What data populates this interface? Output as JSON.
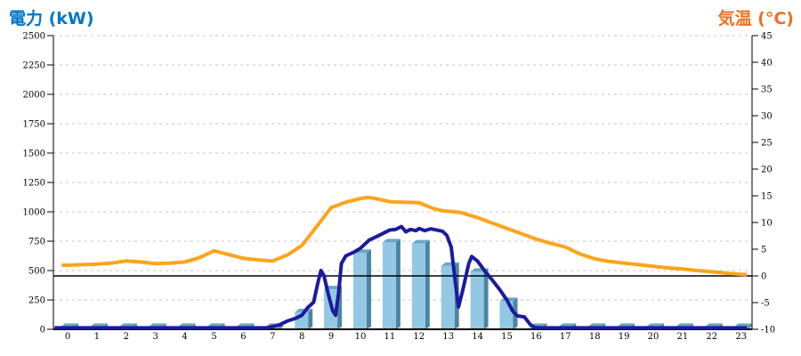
{
  "titles": {
    "left": "電力 (kW)",
    "right": "気温 (°C)"
  },
  "colors": {
    "title_left": "#0077c8",
    "title_right": "#ed7021",
    "bar_front": "#92c8e4",
    "bar_side": "#4a86a2",
    "bar_top": "#68a8c4",
    "power_line": "#1b1b9e",
    "temp_line": "#fca41c",
    "gridline": "#c6c6c6",
    "axis": "#000000"
  },
  "chart_data": {
    "type": "combo-bar-line-dual-axis",
    "title": "",
    "x_tick_labels": [
      "0",
      "1",
      "2",
      "3",
      "4",
      "5",
      "6",
      "7",
      "8",
      "9",
      "10",
      "11",
      "12",
      "13",
      "14",
      "15",
      "16",
      "17",
      "18",
      "19",
      "20",
      "21",
      "22",
      "23"
    ],
    "left_axis": {
      "label": "電力 (kW)",
      "min": 0,
      "max": 2500,
      "tick_step": 250,
      "tick_labels": [
        "0",
        "250",
        "500",
        "750",
        "1000",
        "1250",
        "1500",
        "1750",
        "2000",
        "2250",
        "2500"
      ],
      "grid": "dashed horizontal at each tick"
    },
    "right_axis": {
      "label": "気温 (°C)",
      "min": -10,
      "max": 45,
      "tick_step": 5,
      "tick_labels": [
        "-10",
        "-5",
        "0",
        "5",
        "10",
        "15",
        "20",
        "25",
        "30",
        "35",
        "40",
        "45"
      ],
      "zero_reference_line": true
    },
    "series": [
      {
        "name": "power-bars",
        "type": "bar",
        "axis": "left",
        "values": [
          20,
          20,
          20,
          20,
          20,
          20,
          20,
          20,
          145,
          340,
          650,
          740,
          730,
          540,
          490,
          240,
          20,
          20,
          20,
          20,
          20,
          20,
          20,
          20
        ]
      },
      {
        "name": "power-line",
        "type": "line",
        "axis": "left",
        "points": [
          [
            -0.45,
            12
          ],
          [
            0,
            12
          ],
          [
            1,
            12
          ],
          [
            2,
            12
          ],
          [
            3,
            12
          ],
          [
            4,
            12
          ],
          [
            5,
            12
          ],
          [
            6,
            12
          ],
          [
            6.8,
            12
          ],
          [
            7.2,
            35
          ],
          [
            7.5,
            70
          ],
          [
            7.8,
            95
          ],
          [
            8,
            120
          ],
          [
            8.2,
            185
          ],
          [
            8.4,
            230
          ],
          [
            8.55,
            400
          ],
          [
            8.65,
            500
          ],
          [
            8.75,
            460
          ],
          [
            8.9,
            300
          ],
          [
            9.05,
            160
          ],
          [
            9.15,
            120
          ],
          [
            9.25,
            300
          ],
          [
            9.35,
            560
          ],
          [
            9.5,
            625
          ],
          [
            9.8,
            660
          ],
          [
            10,
            690
          ],
          [
            10.3,
            760
          ],
          [
            10.6,
            795
          ],
          [
            11,
            845
          ],
          [
            11.2,
            850
          ],
          [
            11.4,
            875
          ],
          [
            11.55,
            830
          ],
          [
            11.7,
            850
          ],
          [
            11.9,
            840
          ],
          [
            12,
            858
          ],
          [
            12.2,
            840
          ],
          [
            12.4,
            855
          ],
          [
            12.6,
            845
          ],
          [
            12.8,
            835
          ],
          [
            12.95,
            800
          ],
          [
            13.1,
            700
          ],
          [
            13.25,
            380
          ],
          [
            13.35,
            190
          ],
          [
            13.5,
            340
          ],
          [
            13.7,
            560
          ],
          [
            13.8,
            620
          ],
          [
            14,
            580
          ],
          [
            14.25,
            495
          ],
          [
            14.5,
            420
          ],
          [
            14.75,
            340
          ],
          [
            15,
            250
          ],
          [
            15.2,
            155
          ],
          [
            15.35,
            115
          ],
          [
            15.6,
            105
          ],
          [
            15.8,
            40
          ],
          [
            15.95,
            15
          ],
          [
            16.2,
            12
          ],
          [
            17,
            12
          ],
          [
            18,
            12
          ],
          [
            19,
            12
          ],
          [
            20,
            12
          ],
          [
            21,
            12
          ],
          [
            22,
            12
          ],
          [
            23,
            12
          ],
          [
            23.2,
            12
          ]
        ]
      },
      {
        "name": "temperature-line",
        "type": "line",
        "axis": "right",
        "points": [
          [
            -0.2,
            2.0
          ],
          [
            0,
            2.0
          ],
          [
            0.5,
            2.1
          ],
          [
            1,
            2.2
          ],
          [
            1.5,
            2.4
          ],
          [
            2,
            2.8
          ],
          [
            2.5,
            2.6
          ],
          [
            3,
            2.3
          ],
          [
            3.5,
            2.4
          ],
          [
            4,
            2.6
          ],
          [
            4.5,
            3.4
          ],
          [
            5,
            4.7
          ],
          [
            5.5,
            4.0
          ],
          [
            6,
            3.3
          ],
          [
            6.5,
            3.0
          ],
          [
            7,
            2.8
          ],
          [
            7.5,
            3.9
          ],
          [
            8,
            5.7
          ],
          [
            8.5,
            9.2
          ],
          [
            9,
            12.8
          ],
          [
            9.5,
            13.8
          ],
          [
            10,
            14.5
          ],
          [
            10.25,
            14.7
          ],
          [
            10.5,
            14.5
          ],
          [
            11,
            13.9
          ],
          [
            11.5,
            13.8
          ],
          [
            12,
            13.7
          ],
          [
            12.5,
            12.6
          ],
          [
            12.8,
            12.2
          ],
          [
            13,
            12.1
          ],
          [
            13.4,
            11.9
          ],
          [
            14,
            10.9
          ],
          [
            14.5,
            9.9
          ],
          [
            15,
            8.9
          ],
          [
            15.5,
            7.9
          ],
          [
            16,
            6.9
          ],
          [
            16.5,
            6.1
          ],
          [
            17,
            5.4
          ],
          [
            17.5,
            4.1
          ],
          [
            18,
            3.2
          ],
          [
            18.5,
            2.7
          ],
          [
            19,
            2.4
          ],
          [
            19.5,
            2.1
          ],
          [
            20,
            1.8
          ],
          [
            20.5,
            1.5
          ],
          [
            21,
            1.3
          ],
          [
            21.5,
            1.0
          ],
          [
            22,
            0.8
          ],
          [
            22.5,
            0.5
          ],
          [
            23,
            0.3
          ],
          [
            23.2,
            0.25
          ]
        ]
      }
    ]
  }
}
